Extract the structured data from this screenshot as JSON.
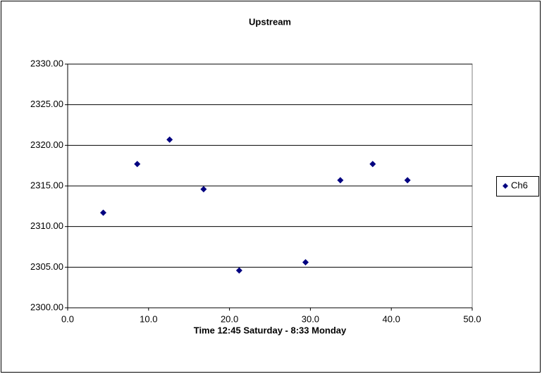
{
  "chart_data": {
    "type": "scatter",
    "title": "Upstream",
    "x_label": "Time 12:45 Saturday - 8:33 Monday",
    "series": [
      {
        "name": "Ch6",
        "color": "#000080",
        "x": [
          4.4,
          8.6,
          12.6,
          16.8,
          21.2,
          29.4,
          33.7,
          37.7,
          42.0
        ],
        "values": [
          2311.7,
          2317.7,
          2320.7,
          2314.6,
          2304.6,
          2305.6,
          2315.7,
          2317.7,
          2315.7
        ]
      }
    ],
    "xlim": [
      0,
      50
    ],
    "xticks": [
      {
        "value": 0,
        "label": "0.0"
      },
      {
        "value": 10,
        "label": "10.0"
      },
      {
        "value": 20,
        "label": "20.0"
      },
      {
        "value": 30,
        "label": "30.0"
      },
      {
        "value": 40,
        "label": "40.0"
      },
      {
        "value": 50,
        "label": "50.0"
      }
    ],
    "ylim": [
      2300,
      2330
    ],
    "yticks": [
      {
        "value": 2300,
        "label": "2300.00"
      },
      {
        "value": 2305,
        "label": "2305.00"
      },
      {
        "value": 2310,
        "label": "2310.00"
      },
      {
        "value": 2315,
        "label": "2315.00"
      },
      {
        "value": 2320,
        "label": "2320.00"
      },
      {
        "value": 2325,
        "label": "2325.00"
      },
      {
        "value": 2330,
        "label": "2330.00"
      }
    ],
    "grid": true,
    "legend": "right"
  }
}
